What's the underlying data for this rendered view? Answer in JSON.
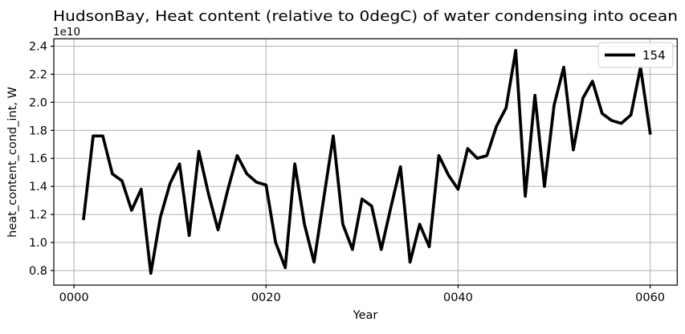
{
  "chart_data": {
    "type": "line",
    "title": "HudsonBay, Heat content (relative to 0degC) of water condensing into ocean",
    "xlabel": "Year",
    "ylabel": "heat_content_cond_int, W",
    "y_offset_label": "1e10",
    "grid": true,
    "grid_color": "#b0b0b0",
    "line_color": "#000000",
    "xlim": [
      -2.1,
      62.82
    ],
    "ylim": [
      0.696,
      2.453
    ],
    "x_ticks": {
      "values": [
        0,
        20,
        40,
        60
      ],
      "labels": [
        "0000",
        "0020",
        "0040",
        "0060"
      ]
    },
    "y_ticks": {
      "values": [
        0.8,
        1.0,
        1.2,
        1.4,
        1.6,
        1.8,
        2.0,
        2.2,
        2.4
      ],
      "labels": [
        "0.8",
        "1.0",
        "1.2",
        "1.4",
        "1.6",
        "1.8",
        "2.0",
        "2.2",
        "2.4"
      ]
    },
    "legend": {
      "position": "upper right",
      "entries": [
        {
          "label": "154",
          "color": "#000000"
        }
      ]
    },
    "series": [
      {
        "name": "154",
        "x": [
          1,
          2,
          3,
          4,
          5,
          6,
          7,
          8,
          9,
          10,
          11,
          12,
          13,
          14,
          15,
          16,
          17,
          18,
          19,
          20,
          21,
          22,
          23,
          24,
          25,
          26,
          27,
          28,
          29,
          30,
          31,
          32,
          33,
          34,
          35,
          36,
          37,
          38,
          39,
          40,
          41,
          42,
          43,
          44,
          45,
          46,
          47,
          48,
          49,
          50,
          51,
          52,
          53,
          54,
          55,
          56,
          57,
          58,
          59,
          60
        ],
        "y": [
          1.17,
          1.76,
          1.76,
          1.49,
          1.44,
          1.23,
          1.38,
          0.78,
          1.18,
          1.42,
          1.56,
          1.05,
          1.65,
          1.35,
          1.09,
          1.37,
          1.62,
          1.49,
          1.43,
          1.41,
          1.0,
          0.82,
          1.56,
          1.13,
          0.86,
          1.31,
          1.76,
          1.13,
          0.95,
          1.31,
          1.26,
          0.95,
          1.25,
          1.54,
          0.86,
          1.13,
          0.97,
          1.62,
          1.48,
          1.38,
          1.67,
          1.6,
          1.62,
          1.83,
          1.96,
          2.37,
          1.33,
          2.05,
          1.4,
          1.98,
          2.25,
          1.66,
          2.03,
          2.15,
          1.92,
          1.87,
          1.85,
          1.91,
          2.25,
          1.78
        ]
      }
    ]
  }
}
